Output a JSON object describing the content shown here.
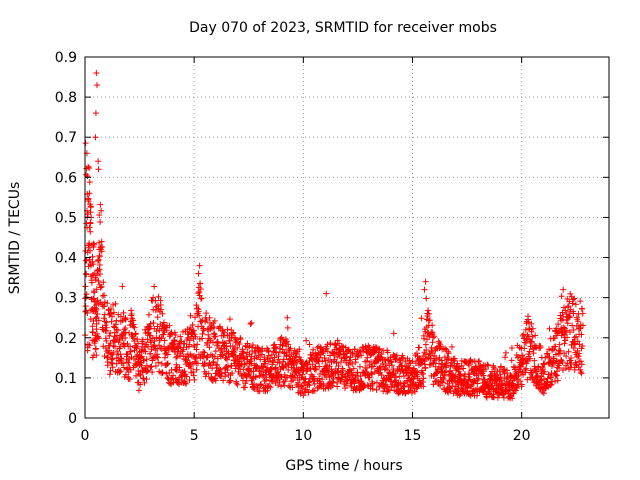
{
  "chart_data": {
    "type": "scatter",
    "title": "Day 070 of 2023, SRMTID for receiver mobs",
    "xlabel": "GPS time / hours",
    "ylabel": "SRMTID / TECUs",
    "xlim": [
      0,
      24
    ],
    "ylim": [
      0,
      0.9
    ],
    "xticks": [
      0,
      5,
      10,
      15,
      20
    ],
    "xtick_labels": [
      "0",
      "5",
      "10",
      "15",
      "20"
    ],
    "yticks": [
      0,
      0.1,
      0.2,
      0.3,
      0.4,
      0.5,
      0.6,
      0.7,
      0.8,
      0.9
    ],
    "ytick_labels": [
      "0",
      "0.1",
      "0.2",
      "0.3",
      "0.4",
      "0.5",
      "0.6",
      "0.7",
      "0.8",
      "0.9"
    ],
    "grid": true,
    "marker": "plus",
    "color": "#ff0000",
    "envelope_x": [
      0,
      0.1,
      0.2,
      0.3,
      0.4,
      0.5,
      0.6,
      0.7,
      0.8,
      0.9,
      1.0,
      1.2,
      1.5,
      1.8,
      2.0,
      2.2,
      2.3,
      2.5,
      2.8,
      3.0,
      3.3,
      3.5,
      3.8,
      4.0,
      4.5,
      5.0,
      5.2,
      5.4,
      5.6,
      6.0,
      6.5,
      7.0,
      7.5,
      8.0,
      8.5,
      9.0,
      9.5,
      10.0,
      10.5,
      11.0,
      11.5,
      12.0,
      12.5,
      13.0,
      13.5,
      14.0,
      14.5,
      15.0,
      15.5,
      15.7,
      16.0,
      16.5,
      17.0,
      17.5,
      18.0,
      18.5,
      19.0,
      19.5,
      20.0,
      20.3,
      20.6,
      21.0,
      21.3,
      21.6,
      22.0,
      22.3,
      22.6,
      22.8
    ],
    "envelope_y": [
      0.35,
      0.45,
      0.55,
      0.35,
      0.25,
      0.2,
      0.32,
      0.45,
      0.3,
      0.22,
      0.18,
      0.2,
      0.2,
      0.18,
      0.16,
      0.22,
      0.15,
      0.12,
      0.16,
      0.2,
      0.22,
      0.2,
      0.16,
      0.15,
      0.15,
      0.16,
      0.25,
      0.2,
      0.18,
      0.16,
      0.16,
      0.14,
      0.13,
      0.12,
      0.12,
      0.14,
      0.13,
      0.1,
      0.12,
      0.13,
      0.14,
      0.12,
      0.12,
      0.13,
      0.12,
      0.11,
      0.11,
      0.1,
      0.14,
      0.2,
      0.14,
      0.12,
      0.1,
      0.1,
      0.1,
      0.09,
      0.09,
      0.08,
      0.14,
      0.18,
      0.15,
      0.11,
      0.12,
      0.16,
      0.2,
      0.22,
      0.2,
      0.2
    ],
    "outliers_x": [
      0.52,
      0.55,
      0.5,
      0.48,
      0.6,
      0.62,
      5.25,
      5.2,
      11.05,
      15.6,
      15.55,
      21.9
    ],
    "outliers_y": [
      0.86,
      0.83,
      0.76,
      0.7,
      0.64,
      0.62,
      0.38,
      0.36,
      0.31,
      0.34,
      0.32,
      0.32
    ],
    "points_per_hour": 110
  }
}
